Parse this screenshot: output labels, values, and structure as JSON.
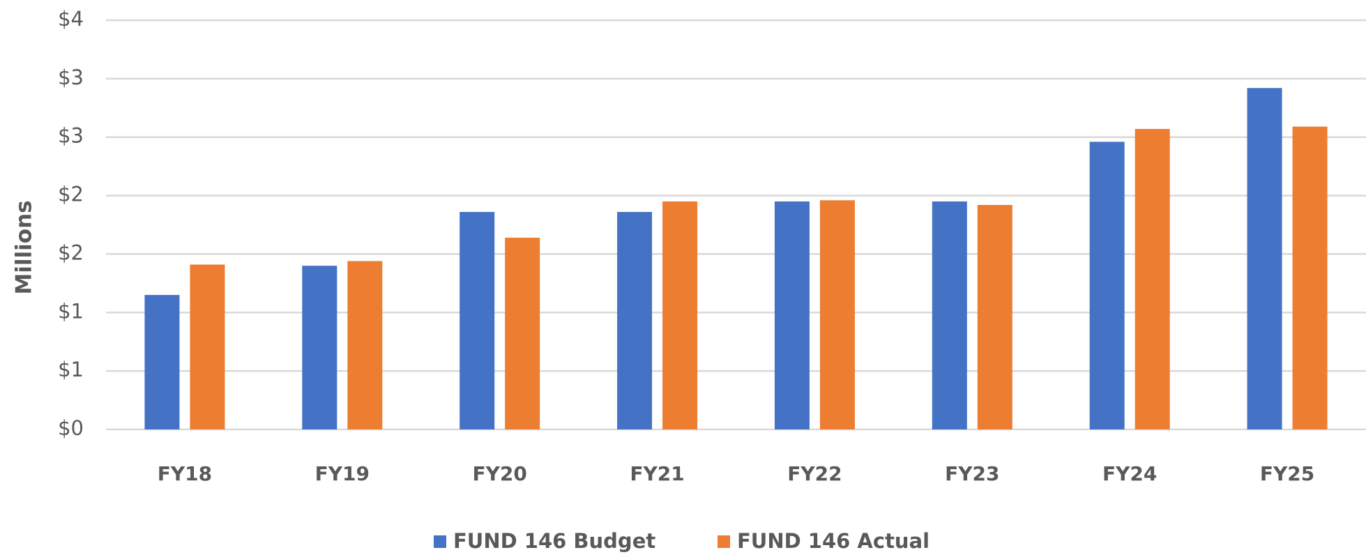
{
  "chart_data": {
    "type": "bar",
    "y_axis_label": "Millions",
    "categories": [
      "FY18",
      "FY19",
      "FY20",
      "FY21",
      "FY22",
      "FY23",
      "FY24",
      "FY25"
    ],
    "series": [
      {
        "name": "FUND 146 Budget",
        "color": "#4472c4",
        "values": [
          1.15,
          1.4,
          1.86,
          1.86,
          1.95,
          1.95,
          2.46,
          2.92
        ]
      },
      {
        "name": "FUND 146 Actual",
        "color": "#ed7d31",
        "values": [
          1.41,
          1.44,
          1.64,
          1.95,
          1.96,
          1.92,
          2.57,
          2.59
        ]
      }
    ],
    "ylim": [
      0,
      3.5
    ],
    "yticks": [
      {
        "value": 0,
        "label": "$0"
      },
      {
        "value": 0.5,
        "label": "$1"
      },
      {
        "value": 1,
        "label": "$1"
      },
      {
        "value": 1.5,
        "label": "$2"
      },
      {
        "value": 2,
        "label": "$2"
      },
      {
        "value": 2.5,
        "label": "$3"
      },
      {
        "value": 3,
        "label": "$3"
      },
      {
        "value": 3.5,
        "label": "$4"
      }
    ],
    "grid": true,
    "legend": "bottom"
  }
}
